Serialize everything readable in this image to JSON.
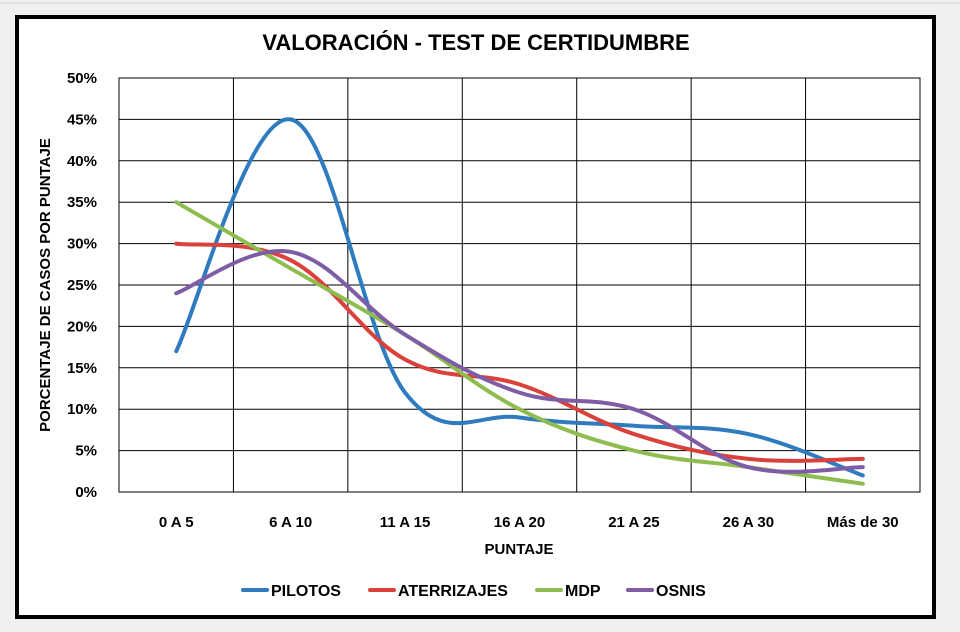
{
  "chart_data": {
    "type": "line",
    "smooth": true,
    "title": "VALORACIÓN - TEST DE CERTIDUMBRE",
    "xlabel": "PUNTAJE",
    "ylabel": "PORCENTAJE DE CASOS POR PUNTAJE",
    "categories": [
      "0 A 5",
      "6 A 10",
      "11 A 15",
      "16 A 20",
      "21 A 25",
      "26 A 30",
      "Más de 30"
    ],
    "ylim": [
      0,
      0.5
    ],
    "yticks": [
      0,
      0.05,
      0.1,
      0.15,
      0.2,
      0.25,
      0.3,
      0.35,
      0.4,
      0.45,
      0.5
    ],
    "ytick_labels": [
      "0%",
      "5%",
      "10%",
      "15%",
      "20%",
      "25%",
      "30%",
      "35%",
      "40%",
      "45%",
      "50%"
    ],
    "grid": true,
    "legend_position": "bottom",
    "series": [
      {
        "name": "PILOTOS",
        "color": "#2e7bbf",
        "values": [
          0.17,
          0.45,
          0.12,
          0.09,
          0.08,
          0.07,
          0.02
        ]
      },
      {
        "name": "ATERRIZAJES",
        "color": "#d9413a",
        "values": [
          0.3,
          0.28,
          0.16,
          0.13,
          0.07,
          0.04,
          0.04
        ]
      },
      {
        "name": "MDP",
        "color": "#8fbc4f",
        "values": [
          0.35,
          0.27,
          0.19,
          0.1,
          0.05,
          0.03,
          0.01
        ]
      },
      {
        "name": "OSNIS",
        "color": "#7f5da6",
        "values": [
          0.24,
          0.29,
          0.19,
          0.12,
          0.1,
          0.03,
          0.03
        ]
      }
    ]
  }
}
